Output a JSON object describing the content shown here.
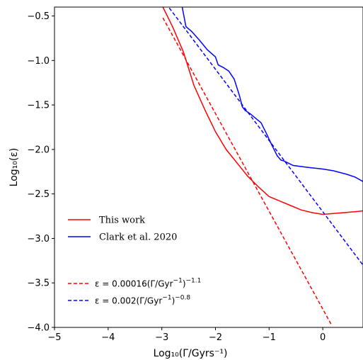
{
  "chart_data": {
    "type": "line",
    "xlabel": "Log₁₀(Γ/Gyrs⁻¹)",
    "ylabel": "Log₁₀(ε)",
    "xlim": [
      -5,
      0.75
    ],
    "ylim": [
      -4.0,
      -0.4
    ],
    "x_ticks": [
      -5,
      -4,
      -3,
      -2,
      -1,
      0
    ],
    "x_tick_labels": [
      "−5",
      "−4",
      "−3",
      "−2",
      "−1",
      "0"
    ],
    "y_ticks": [
      -4.0,
      -3.5,
      -3.0,
      -2.5,
      -2.0,
      -1.5,
      -1.0,
      -0.5
    ],
    "y_tick_labels": [
      "−4.0",
      "−3.5",
      "−3.0",
      "−2.5",
      "−2.0",
      "−1.5",
      "−1.0",
      "−0.5"
    ],
    "grid": false,
    "legend_position": "lower-left",
    "series": [
      {
        "name": "This work",
        "color": "#ff0000",
        "style": "solid",
        "x": [
          -2.98,
          -2.8,
          -2.6,
          -2.4,
          -2.2,
          -2.0,
          -1.8,
          -1.6,
          -1.4,
          -1.2,
          -1.0,
          -0.8,
          -0.6,
          -0.4,
          -0.2,
          0.0,
          0.2,
          0.4,
          0.6,
          0.75
        ],
        "y": [
          -0.4,
          -0.62,
          -0.9,
          -1.28,
          -1.55,
          -1.8,
          -2.0,
          -2.15,
          -2.3,
          -2.42,
          -2.53,
          -2.58,
          -2.63,
          -2.68,
          -2.71,
          -2.73,
          -2.72,
          -2.71,
          -2.7,
          -2.69
        ]
      },
      {
        "name": "Clark et al. 2020",
        "color": "#0000ff",
        "style": "solid",
        "x": [
          -2.62,
          -2.55,
          -2.45,
          -2.3,
          -2.15,
          -2.0,
          -1.95,
          -1.85,
          -1.75,
          -1.65,
          -1.55,
          -1.5,
          -1.45,
          -1.35,
          -1.25,
          -1.15,
          -1.05,
          -0.95,
          -0.85,
          -0.78,
          -0.72,
          -0.55,
          -0.3,
          0.0,
          0.2,
          0.45,
          0.6,
          0.75
        ],
        "y": [
          -0.4,
          -0.62,
          -0.67,
          -0.77,
          -0.88,
          -0.96,
          -1.05,
          -1.08,
          -1.12,
          -1.21,
          -1.4,
          -1.52,
          -1.56,
          -1.6,
          -1.65,
          -1.7,
          -1.82,
          -1.95,
          -2.07,
          -2.12,
          -2.13,
          -2.18,
          -2.2,
          -2.22,
          -2.24,
          -2.28,
          -2.31,
          -2.36
        ]
      },
      {
        "name": "ε = 0.00016(Γ/Gyr⁻¹)⁻¹·¹",
        "color": "#ff0000",
        "style": "dashed",
        "formula": {
          "coef": 0.00016,
          "exponent": -1.1
        },
        "x": [
          -2.98,
          0.16
        ],
        "y": [
          -0.52,
          -3.97
        ]
      },
      {
        "name": "ε = 0.002(Γ/Gyr⁻¹)⁻⁰·⁸",
        "color": "#0000ff",
        "style": "dashed",
        "formula": {
          "coef": 0.002,
          "exponent": -0.8
        },
        "x": [
          -2.86,
          0.75
        ],
        "y": [
          -0.41,
          -3.3
        ]
      }
    ],
    "legend_upper": [
      {
        "label": "This work",
        "color": "#ff0000",
        "style": "solid"
      },
      {
        "label": "Clark et al. 2020",
        "color": "#0000ff",
        "style": "solid"
      }
    ],
    "legend_lower": [
      {
        "prefix": "ε = 0.00016(Γ/Gyr",
        "sup1": "−1",
        "close": ")",
        "sup2": "−1.1",
        "color": "#ff0000",
        "style": "dashed"
      },
      {
        "prefix": "ε = 0.002(Γ/Gyr",
        "sup1": "−1",
        "close": ")",
        "sup2": "−0.8",
        "color": "#0000ff",
        "style": "dashed"
      }
    ]
  }
}
